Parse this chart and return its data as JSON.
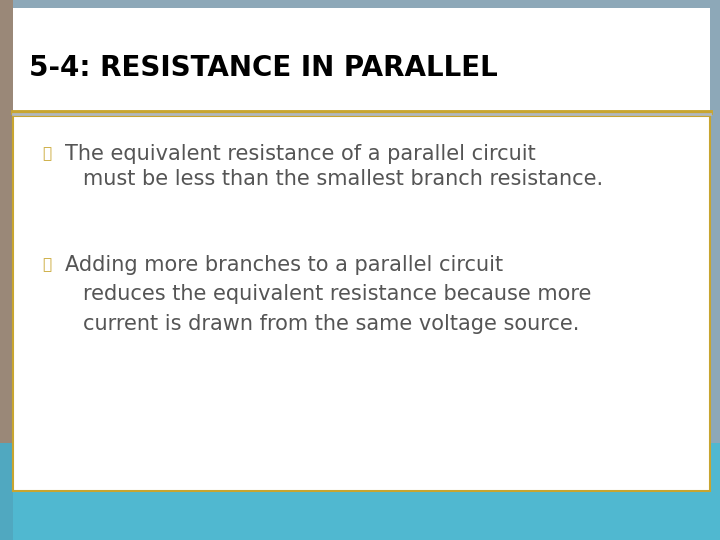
{
  "title": "5-4: RESISTANCE IN PARALLEL",
  "title_fontsize": 20,
  "title_color": "#000000",
  "title_bg_color": "#ffffff",
  "bullet_color": "#c8a530",
  "text_color": "#555555",
  "body_bg_color": "#ffffff",
  "outer_bg_top_color": "#b0b0b8",
  "outer_bg_bottom_color": "#60c0d8",
  "border_color": "#c8a530",
  "separator_color1": "#c8a530",
  "separator_color2": "#b0b8c0",
  "text_fontsize": 15,
  "bullet1_first": "The equivalent resistance of a parallel circuit",
  "bullet1_second": "must be less than the smallest branch resistance.",
  "bullet2_first": "Adding more branches to a parallel circuit",
  "bullet2_second": "reduces the equivalent resistance because more",
  "bullet2_third": "current is drawn from the same voltage source."
}
